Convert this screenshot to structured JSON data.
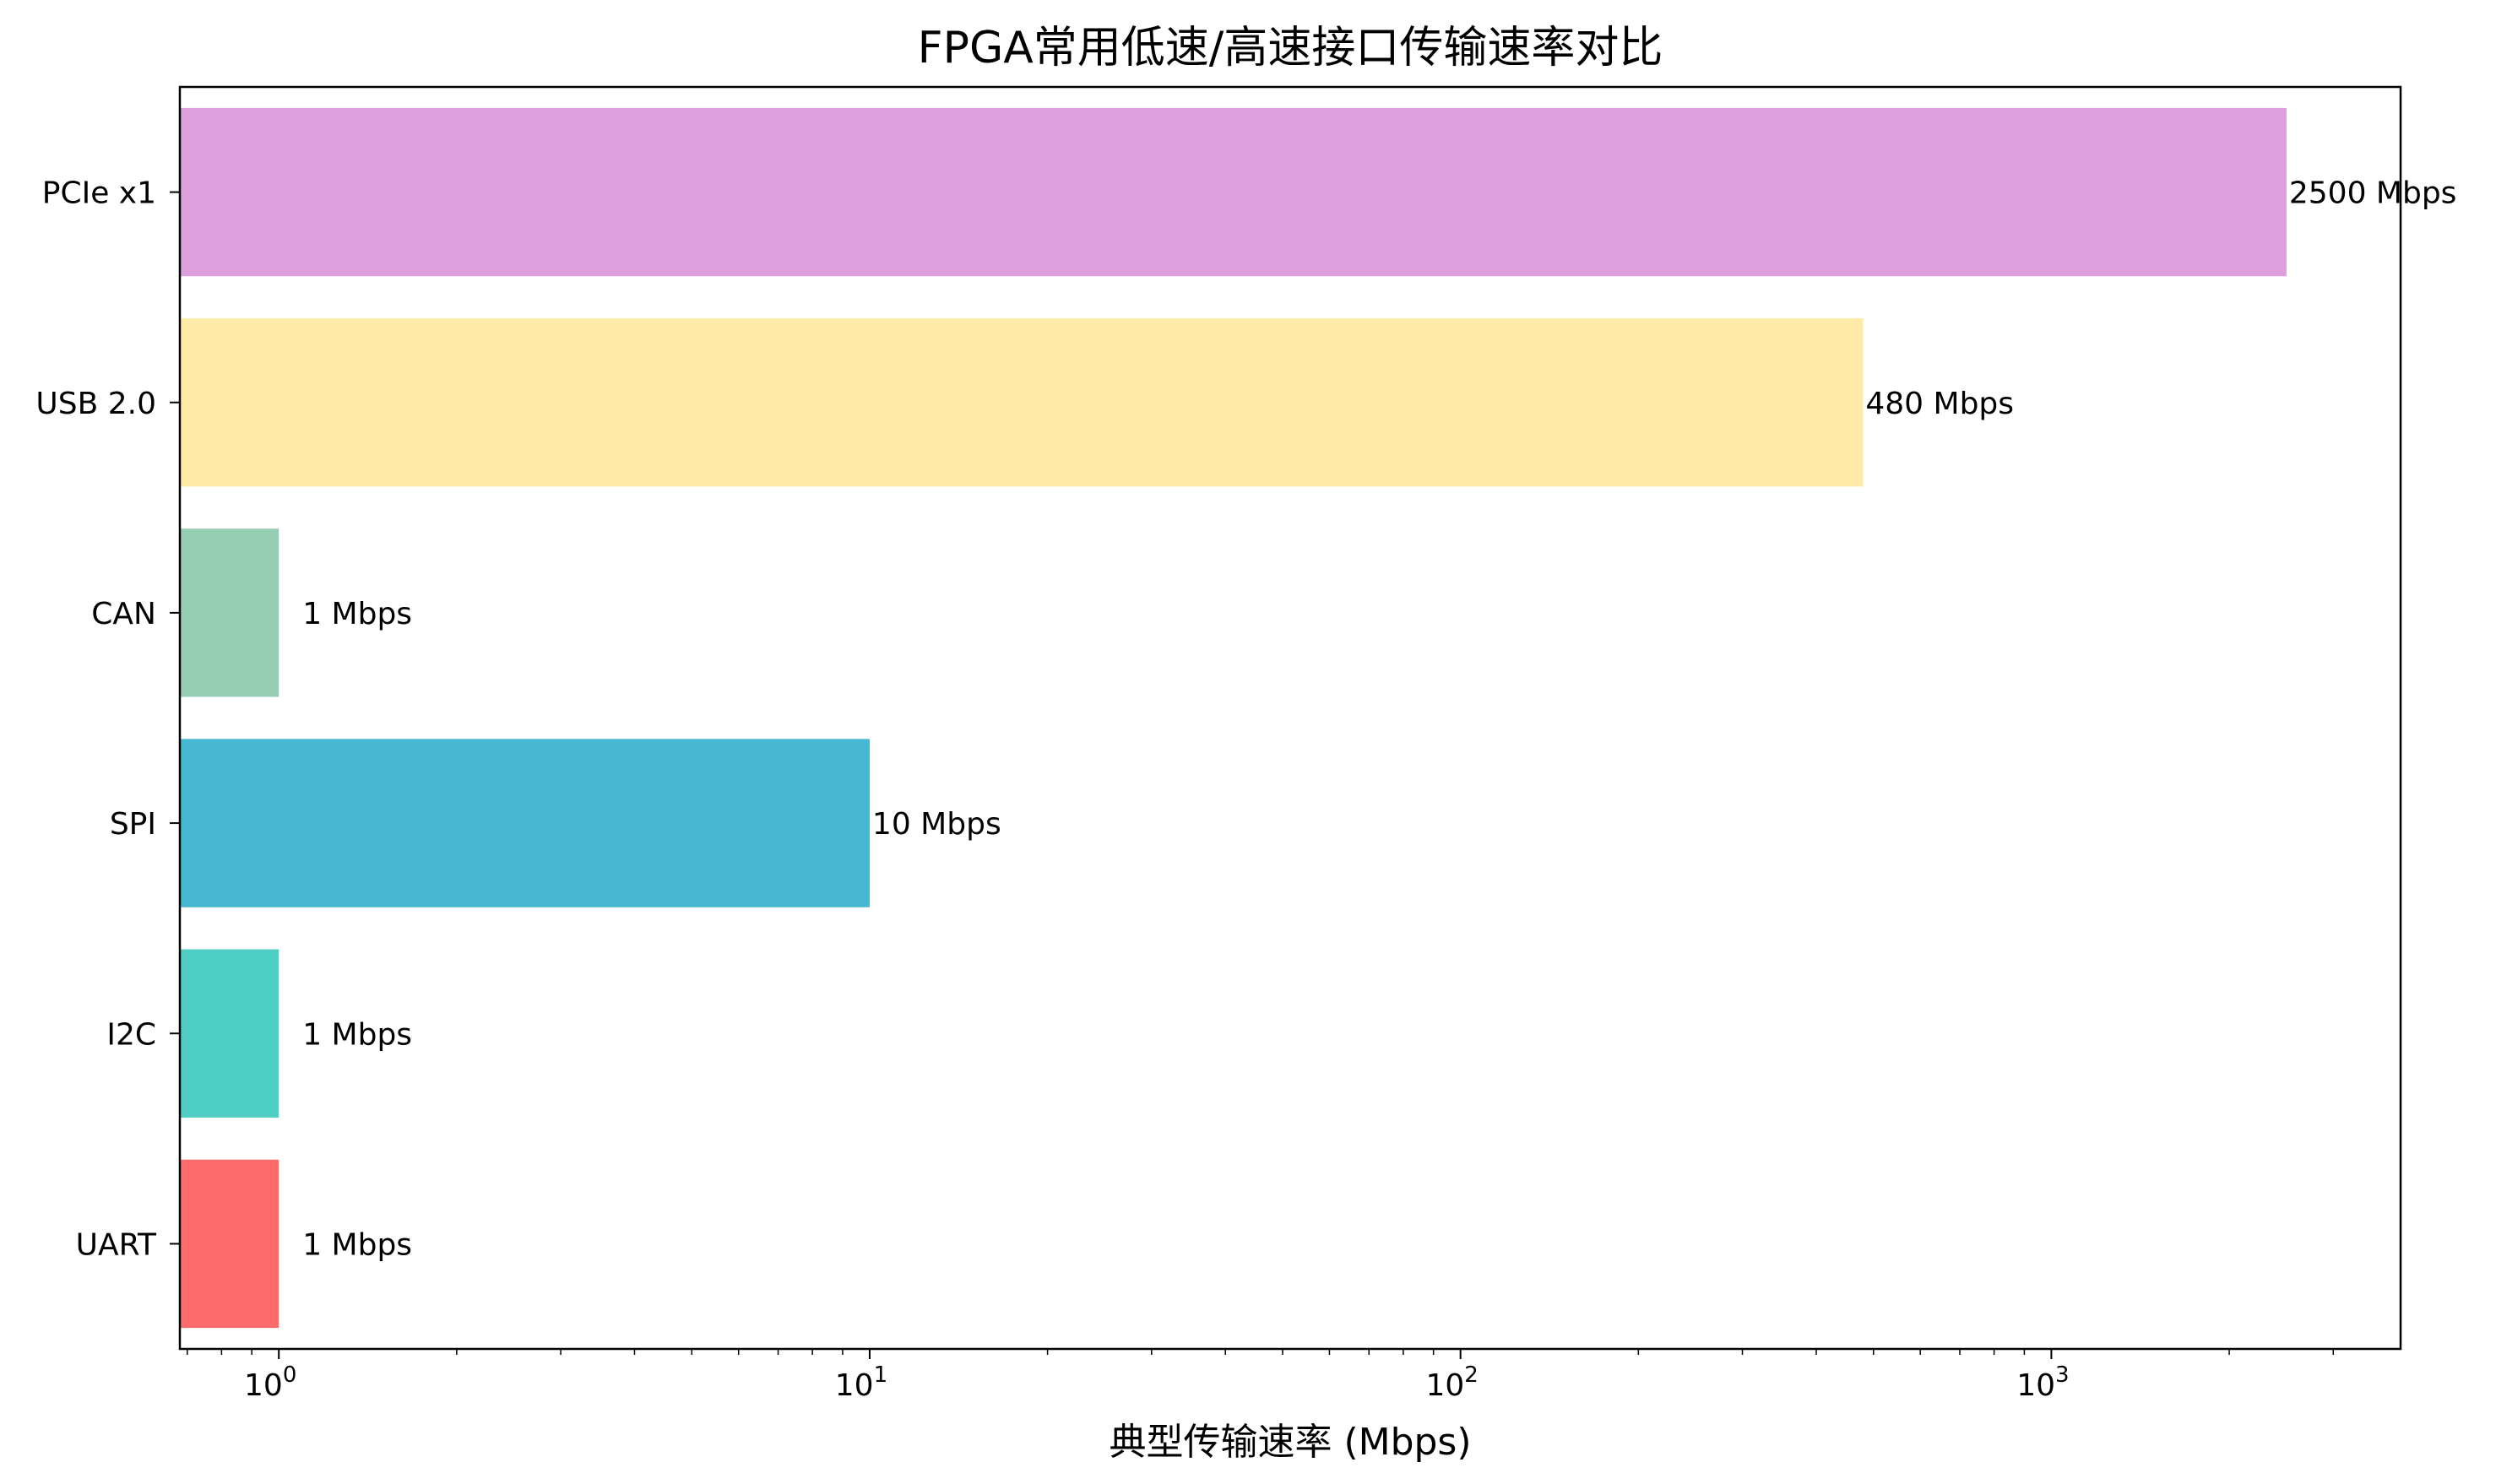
{
  "chart_data": {
    "type": "bar",
    "orientation": "horizontal",
    "title": "FPGA常用低速/高速接口传输速率对比",
    "xlabel": "典型传输速率 (Mbps)",
    "ylabel": "",
    "xscale": "log",
    "xlim": [
      0.68,
      3900
    ],
    "grid": false,
    "categories": [
      "UART",
      "I2C",
      "SPI",
      "CAN",
      "USB 2.0",
      "PCIe x1"
    ],
    "values": [
      1,
      1,
      10,
      1,
      480,
      2500
    ],
    "value_labels": [
      "1 Mbps",
      "1 Mbps",
      "10 Mbps",
      "1 Mbps",
      "480 Mbps",
      "2500 Mbps"
    ],
    "colors": [
      "#ff6b6b",
      "#4ecdc4",
      "#45b7d1",
      "#96ceb4",
      "#ffeaa7",
      "#dda0dd"
    ],
    "x_ticks": [
      {
        "value": 1,
        "base": "10",
        "exp": "0"
      },
      {
        "value": 10,
        "base": "10",
        "exp": "1"
      },
      {
        "value": 100,
        "base": "10",
        "exp": "2"
      },
      {
        "value": 1000,
        "base": "10",
        "exp": "3"
      }
    ]
  }
}
